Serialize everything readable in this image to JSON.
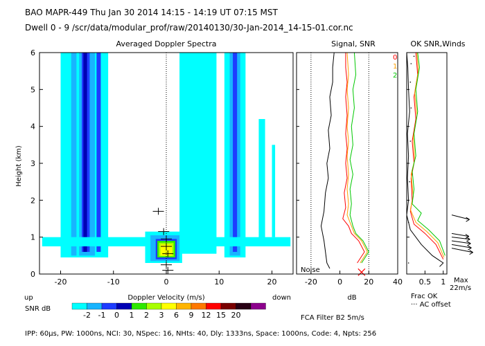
{
  "header": {
    "line1": "BAO  MAPR-449  Thu Jan 30 2014 14:15 - 14:19 UT 07:15 MST",
    "line2": "Dwell  0 - 9   /scr/data/modular_prof/raw/20140130/30-Jan-2014_14-15-01.cor.nc"
  },
  "footer": {
    "params": "IPP: 60μs,  PW: 1000ns,  NCI: 30,  NSpec: 16, NHts: 40,  Dly: 1333ns,  Space: 1000ns,  Code: 4,  Npts: 256",
    "fca": "FCA Filter B2  5m/s",
    "up": "up",
    "down": "down"
  },
  "colors": {
    "scale": [
      "#00ffff",
      "#18b4ff",
      "#1e3cff",
      "#0000b4",
      "#2ee800",
      "#a8ff00",
      "#ffff00",
      "#ffb400",
      "#ff7800",
      "#ff0000",
      "#780000",
      "#280014",
      "#8c008c"
    ],
    "snr0": "#ff0000",
    "snr1": "#ffa000",
    "snr2": "#00c800"
  },
  "colorbar": {
    "label": "SNR dB",
    "ticks": [
      "-2",
      "-1",
      "0",
      "1",
      "2",
      "3",
      "6",
      "9",
      "12",
      "15",
      "20"
    ]
  },
  "legend": {
    "items": [
      "0",
      "1",
      "2"
    ],
    "frac_ok": "Frac OK",
    "ac_offset": "··· AC offset"
  },
  "max_wind": {
    "label": "Max",
    "value": "22m/s"
  },
  "noise_label": "Noise",
  "chart_data": [
    {
      "type": "heatmap",
      "title": "Averaged Doppler Spectra",
      "xlabel": "Doppler Velocity (m/s)",
      "ylabel": "Height (km)",
      "xlim": [
        -24,
        24
      ],
      "ylim": [
        0,
        6
      ],
      "xticks": [
        "-20",
        "-10",
        "0",
        "10",
        "20"
      ],
      "yticks": [
        "0",
        "1",
        "2",
        "3",
        "4",
        "5",
        "6"
      ],
      "zlabel": "SNR dB",
      "bands": [
        {
          "v0": -20.0,
          "v1": -11.0,
          "h0": 0.45,
          "h1": 6.0,
          "level": 0
        },
        {
          "v0": -18.0,
          "v1": -17.0,
          "h0": 0.5,
          "h1": 6.0,
          "level": 1
        },
        {
          "v0": -16.5,
          "v1": -13.5,
          "h0": 0.5,
          "h1": 6.0,
          "level": 1
        },
        {
          "v0": -16.0,
          "v1": -14.5,
          "h0": 0.6,
          "h1": 6.0,
          "level": 2
        },
        {
          "v0": -15.7,
          "v1": -15.0,
          "h0": 0.6,
          "h1": 6.0,
          "level": 3
        },
        {
          "v0": -13.2,
          "v1": -12.4,
          "h0": 0.6,
          "h1": 6.0,
          "level": 2
        },
        {
          "v0": 2.5,
          "v1": 9.5,
          "h0": 0.55,
          "h1": 6.0,
          "level": 0
        },
        {
          "v0": 11.0,
          "v1": 15.0,
          "h0": 0.45,
          "h1": 6.0,
          "level": 0
        },
        {
          "v0": 12.0,
          "v1": 14.0,
          "h0": 0.5,
          "h1": 6.0,
          "level": 1
        },
        {
          "v0": 12.6,
          "v1": 13.4,
          "h0": 0.6,
          "h1": 6.0,
          "level": 2
        },
        {
          "v0": 17.5,
          "v1": 18.7,
          "h0": 0.8,
          "h1": 4.2,
          "level": 0
        },
        {
          "v0": 20.0,
          "v1": 20.6,
          "h0": 1.0,
          "h1": 3.5,
          "level": 0
        },
        {
          "v0": -23.5,
          "v1": 23.5,
          "h0": 0.75,
          "h1": 1.0,
          "level": 0
        }
      ],
      "core": [
        {
          "v0": -4.0,
          "v1": 3.0,
          "h0": 0.3,
          "h1": 1.15,
          "level": 0
        },
        {
          "v0": -3.0,
          "v1": 2.5,
          "h0": 0.35,
          "h1": 1.05,
          "level": 1
        },
        {
          "v0": -2.0,
          "v1": 2.0,
          "h0": 0.4,
          "h1": 0.95,
          "level": 2
        },
        {
          "v0": -1.7,
          "v1": 1.7,
          "h0": 0.45,
          "h1": 0.9,
          "level": 4
        },
        {
          "v0": -1.4,
          "v1": 1.4,
          "h0": 0.48,
          "h1": 0.85,
          "level": 5
        },
        {
          "v0": -1.1,
          "v1": 1.1,
          "h0": 0.5,
          "h1": 0.8,
          "level": 6
        }
      ],
      "markers": [
        {
          "v": -1.5,
          "h": 1.7
        },
        {
          "v": -0.5,
          "h": 1.15
        },
        {
          "v": 0.0,
          "h": 0.95
        },
        {
          "v": 0.0,
          "h": 0.75
        },
        {
          "v": 0.3,
          "h": 0.55
        },
        {
          "v": 0.0,
          "h": 0.25
        },
        {
          "v": 0.3,
          "h": 0.1
        }
      ]
    },
    {
      "type": "line",
      "title": "Signal, SNR",
      "xlabel": "dB",
      "xlim": [
        -30,
        40
      ],
      "ylim": [
        0,
        6
      ],
      "xticks": [
        "-20",
        "0",
        "20",
        "40"
      ],
      "dotted_x": [
        -20,
        20
      ],
      "series": [
        {
          "name": "Signal",
          "color": "#000000",
          "points": [
            [
              -7,
              0.15
            ],
            [
              -9,
              0.3
            ],
            [
              -10,
              0.6
            ],
            [
              -11,
              0.9
            ],
            [
              -13,
              1.3
            ],
            [
              -11,
              1.7
            ],
            [
              -10,
              2.2
            ],
            [
              -8,
              2.6
            ],
            [
              -9,
              3.0
            ],
            [
              -7,
              3.4
            ],
            [
              -8,
              3.9
            ],
            [
              -6,
              4.3
            ],
            [
              -7,
              4.8
            ],
            [
              -5,
              5.2
            ],
            [
              -5,
              5.6
            ],
            [
              -4,
              6.0
            ]
          ]
        },
        {
          "name": "0",
          "color": "#ff0000",
          "points": [
            [
              12,
              0.3
            ],
            [
              17,
              0.6
            ],
            [
              13,
              0.9
            ],
            [
              8,
              1.1
            ],
            [
              6,
              1.3
            ],
            [
              2,
              1.5
            ],
            [
              4,
              1.8
            ],
            [
              3,
              2.2
            ],
            [
              5,
              2.6
            ],
            [
              4,
              3.0
            ],
            [
              5,
              3.4
            ],
            [
              4,
              3.8
            ],
            [
              5,
              4.3
            ],
            [
              4,
              4.8
            ],
            [
              5,
              5.2
            ],
            [
              4,
              5.6
            ],
            [
              4,
              6.0
            ]
          ]
        },
        {
          "name": "1",
          "color": "#ffa000",
          "points": [
            [
              14,
              0.3
            ],
            [
              19,
              0.6
            ],
            [
              15,
              0.9
            ],
            [
              10,
              1.1
            ],
            [
              8,
              1.3
            ],
            [
              5,
              1.6
            ],
            [
              6,
              1.9
            ],
            [
              5,
              2.3
            ],
            [
              6,
              2.7
            ],
            [
              5,
              3.2
            ],
            [
              6,
              3.6
            ],
            [
              5,
              4.0
            ],
            [
              6,
              4.5
            ],
            [
              5,
              5.0
            ],
            [
              6,
              5.4
            ],
            [
              5,
              6.0
            ]
          ]
        },
        {
          "name": "2",
          "color": "#00c800",
          "points": [
            [
              15,
              0.3
            ],
            [
              20,
              0.6
            ],
            [
              16,
              0.9
            ],
            [
              11,
              1.1
            ],
            [
              9,
              1.3
            ],
            [
              7,
              1.6
            ],
            [
              8,
              1.9
            ],
            [
              7,
              2.3
            ],
            [
              9,
              2.7
            ],
            [
              7,
              3.1
            ],
            [
              9,
              3.5
            ],
            [
              8,
              4.0
            ],
            [
              10,
              4.5
            ],
            [
              9,
              5.0
            ],
            [
              11,
              5.4
            ],
            [
              10,
              6.0
            ]
          ]
        }
      ]
    },
    {
      "type": "line",
      "title": "OK SNR,Winds",
      "xlabel": "Frac OK",
      "xlim": [
        0,
        1.1
      ],
      "ylim": [
        0,
        6
      ],
      "xticks": [
        "0.5",
        "1"
      ],
      "series": [
        {
          "name": "Frac OK",
          "color": "#000000",
          "points": [
            [
              0.9,
              0.2
            ],
            [
              1.0,
              0.3
            ],
            [
              0.7,
              0.5
            ],
            [
              0.4,
              0.8
            ],
            [
              0.1,
              1.2
            ],
            [
              0.0,
              1.6
            ],
            [
              0.05,
              2.0
            ],
            [
              0.02,
              2.6
            ],
            [
              0.05,
              3.2
            ],
            [
              0.02,
              3.8
            ],
            [
              0.08,
              4.4
            ],
            [
              0.05,
              5.0
            ],
            [
              0.03,
              5.6
            ],
            [
              0.0,
              6.0
            ]
          ]
        },
        {
          "name": "0",
          "color": "#ff0000",
          "points": [
            [
              1.0,
              0.4
            ],
            [
              0.8,
              0.8
            ],
            [
              0.5,
              1.1
            ],
            [
              0.2,
              1.35
            ],
            [
              0.1,
              1.7
            ],
            [
              0.15,
              2.0
            ],
            [
              0.12,
              2.6
            ],
            [
              0.2,
              3.0
            ],
            [
              0.15,
              3.6
            ],
            [
              0.25,
              4.2
            ],
            [
              0.2,
              4.8
            ],
            [
              0.3,
              5.4
            ],
            [
              0.25,
              6.0
            ]
          ]
        },
        {
          "name": "1",
          "color": "#ffa000",
          "points": [
            [
              1.02,
              0.45
            ],
            [
              0.85,
              0.85
            ],
            [
              0.55,
              1.15
            ],
            [
              0.25,
              1.4
            ],
            [
              0.1,
              1.75
            ],
            [
              0.18,
              2.1
            ],
            [
              0.12,
              2.7
            ],
            [
              0.22,
              3.1
            ],
            [
              0.18,
              3.7
            ],
            [
              0.28,
              4.3
            ],
            [
              0.22,
              4.9
            ],
            [
              0.32,
              5.5
            ],
            [
              0.28,
              6.0
            ]
          ]
        },
        {
          "name": "2",
          "color": "#00c800",
          "points": [
            [
              1.05,
              0.5
            ],
            [
              0.9,
              0.9
            ],
            [
              0.6,
              1.2
            ],
            [
              0.3,
              1.45
            ],
            [
              0.4,
              1.65
            ],
            [
              0.15,
              1.9
            ],
            [
              0.2,
              2.3
            ],
            [
              0.15,
              2.8
            ],
            [
              0.25,
              3.2
            ],
            [
              0.2,
              3.8
            ],
            [
              0.3,
              4.4
            ],
            [
              0.25,
              5.0
            ],
            [
              0.35,
              5.6
            ],
            [
              0.3,
              6.0
            ]
          ]
        }
      ],
      "wind_barbs": [
        {
          "h": 0.7,
          "speed": 22,
          "dir_deg": 200
        },
        {
          "h": 0.8,
          "speed": 18,
          "dir_deg": 205
        },
        {
          "h": 0.9,
          "speed": 16,
          "dir_deg": 210
        },
        {
          "h": 1.0,
          "speed": 14,
          "dir_deg": 215
        },
        {
          "h": 1.1,
          "speed": 12,
          "dir_deg": 205
        },
        {
          "h": 1.6,
          "speed": 14,
          "dir_deg": 190
        }
      ],
      "ac_offset_points": [
        [
          0.05,
          0.3
        ],
        [
          0.05,
          1.4
        ],
        [
          0.08,
          2.5
        ],
        [
          0.1,
          3.6
        ],
        [
          0.12,
          4.5
        ],
        [
          0.1,
          5.2
        ],
        [
          0.12,
          5.7
        ],
        [
          0.2,
          5.9
        ]
      ]
    }
  ]
}
